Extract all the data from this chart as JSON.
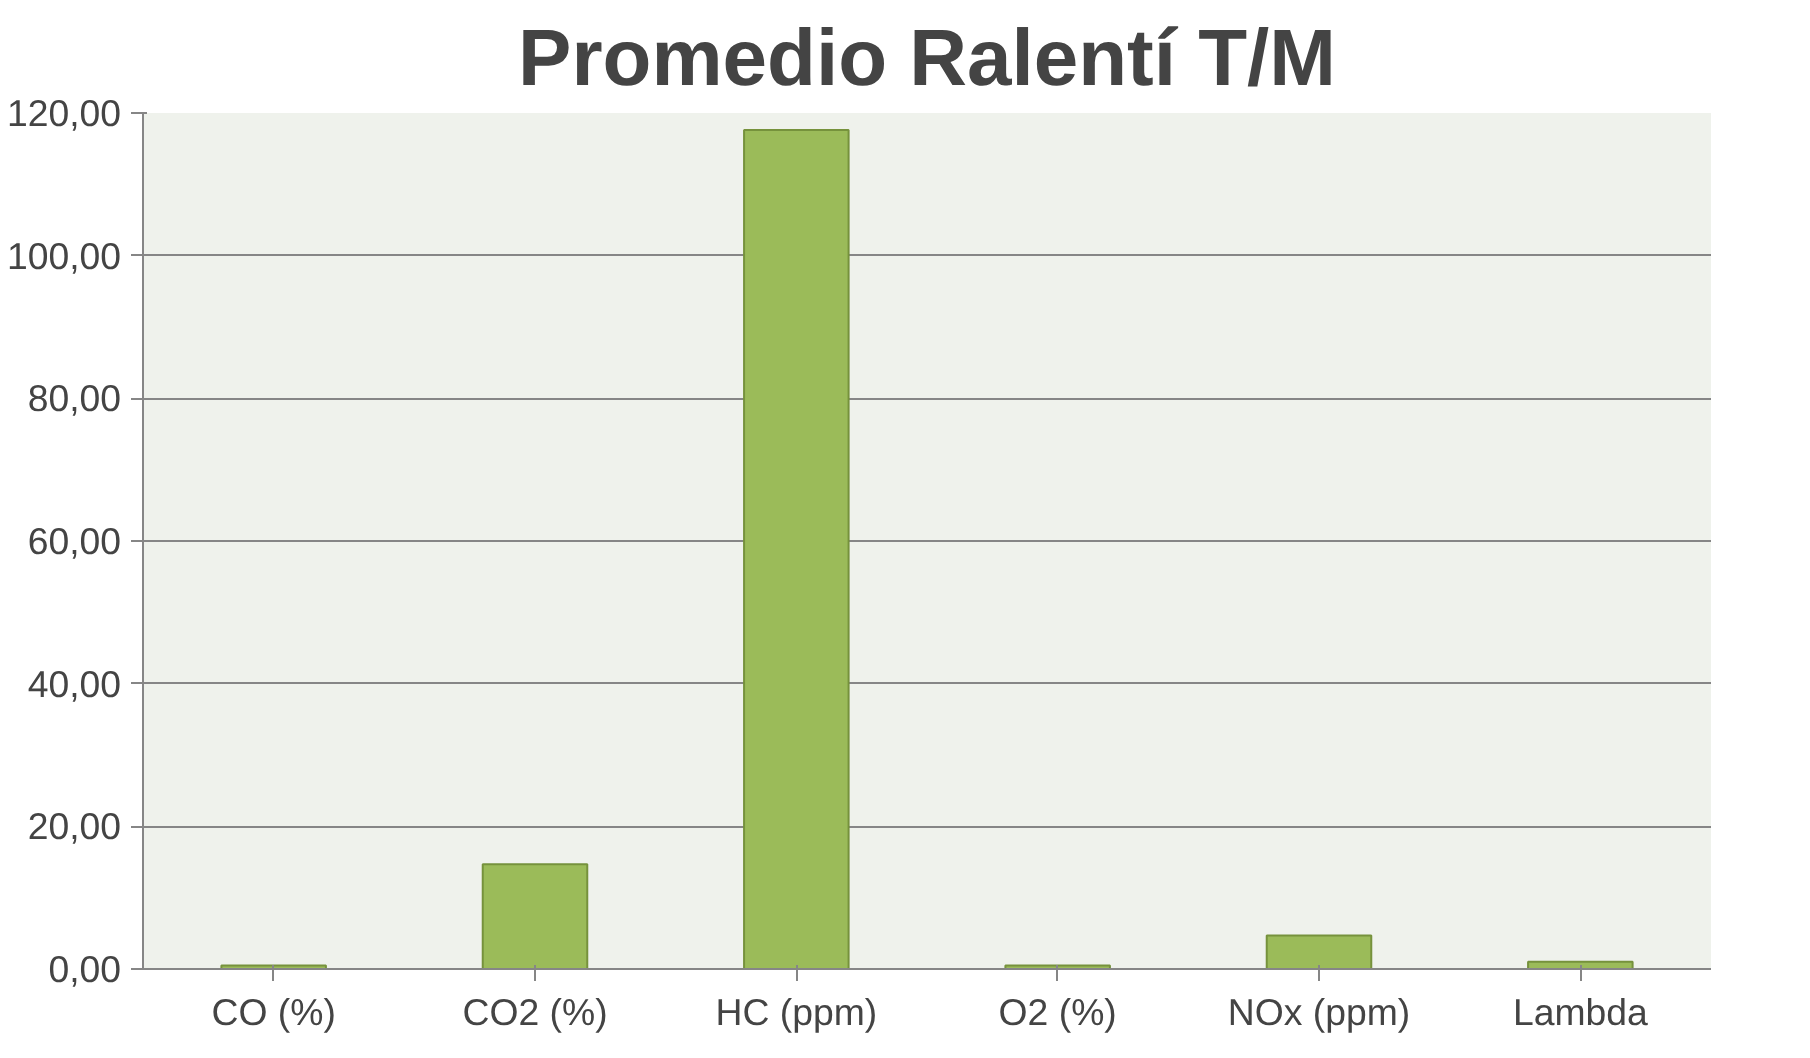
{
  "chart_data": {
    "type": "bar",
    "title": "Promedio Ralentí T/M",
    "categories": [
      "CO (%)",
      "CO2 (%)",
      "HC (ppm)",
      "O2 (%)",
      "NOx (ppm)",
      "Lambda"
    ],
    "values": [
      0.5,
      14.7,
      117.6,
      0.5,
      4.7,
      1.0
    ],
    "color": "#9bbb59",
    "ylim": [
      0,
      120
    ],
    "yticks": [
      {
        "value": 0,
        "label": "0,00"
      },
      {
        "value": 20,
        "label": "20,00"
      },
      {
        "value": 40,
        "label": "40,00"
      },
      {
        "value": 60,
        "label": "60,00"
      },
      {
        "value": 80,
        "label": "80,00"
      },
      {
        "value": 100,
        "label": "100,00"
      },
      {
        "value": 120,
        "label": "120,00"
      }
    ],
    "grid": "y"
  }
}
